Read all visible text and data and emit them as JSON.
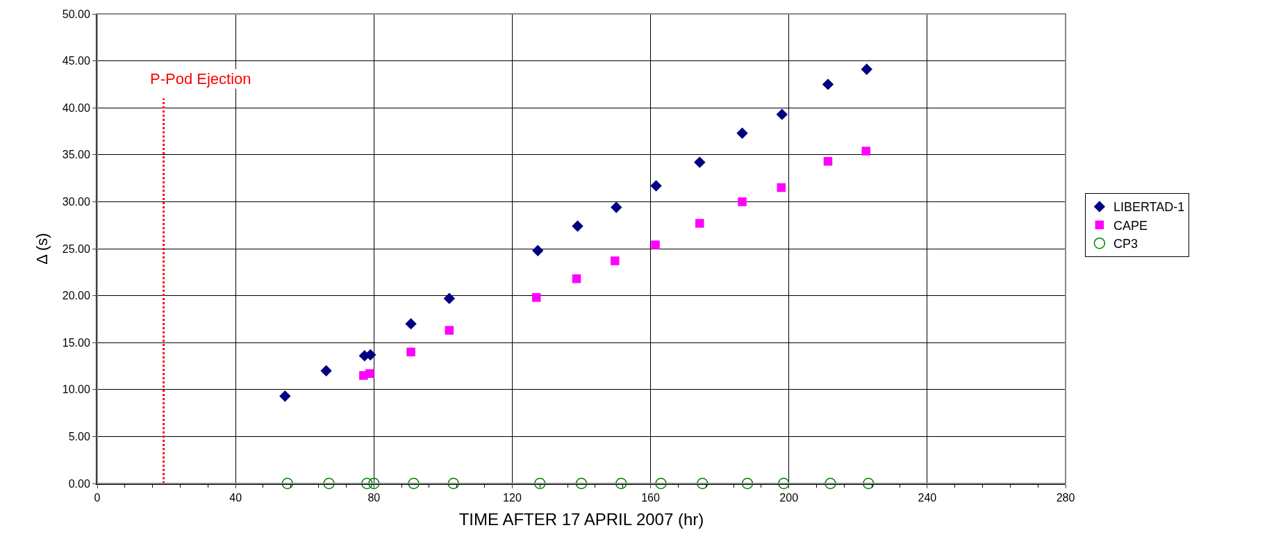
{
  "chart_data": {
    "type": "scatter",
    "xlabel": "TIME AFTER 17 APRIL 2007 (hr)",
    "ylabel": "Δ (s)",
    "xlim": [
      0,
      280
    ],
    "xticks": [
      0,
      40,
      80,
      120,
      160,
      200,
      240,
      280
    ],
    "ylim": [
      0,
      50
    ],
    "yticks": [
      {
        "value": 0,
        "label": "0.00"
      },
      {
        "value": 5,
        "label": "5.00"
      },
      {
        "value": 10,
        "label": "10.00"
      },
      {
        "value": 15,
        "label": "15.00"
      },
      {
        "value": 20,
        "label": "20.00"
      },
      {
        "value": 25,
        "label": "25.00"
      },
      {
        "value": 30,
        "label": "30.00"
      },
      {
        "value": 35,
        "label": "35.00"
      },
      {
        "value": 40,
        "label": "40.00"
      },
      {
        "value": 45,
        "label": "45.00"
      },
      {
        "value": 50,
        "label": "50.00"
      }
    ],
    "grid": true,
    "legend": "right",
    "series": [
      {
        "name": "LIBERTAD-1",
        "color": "#000080",
        "marker": "diamond",
        "x": [
          54.3,
          66.2,
          77.3,
          79.0,
          90.7,
          101.8,
          127.4,
          138.9,
          150.1,
          161.6,
          174.2,
          186.5,
          198.0,
          211.3,
          222.5
        ],
        "values": [
          9.3,
          12.0,
          13.6,
          13.7,
          17.0,
          19.7,
          24.8,
          27.4,
          29.4,
          31.7,
          34.2,
          37.3,
          39.3,
          42.5,
          44.1
        ]
      },
      {
        "name": "CAPE",
        "color": "#ff00ff",
        "marker": "square",
        "x": [
          77.0,
          78.8,
          90.7,
          101.8,
          127.0,
          138.6,
          149.7,
          161.4,
          174.2,
          186.5,
          197.8,
          211.3,
          222.3
        ],
        "values": [
          11.5,
          11.7,
          14.0,
          16.3,
          19.8,
          21.8,
          23.7,
          25.4,
          27.7,
          30.0,
          31.5,
          34.3,
          35.4
        ]
      },
      {
        "name": "CP3",
        "color": "#008000",
        "marker": "circle-open",
        "x": [
          55,
          67,
          78,
          80,
          91.5,
          103,
          128,
          140,
          151.5,
          163,
          175,
          188,
          198.5,
          212,
          223
        ],
        "values": [
          0,
          0,
          0,
          0,
          0,
          0,
          0,
          0,
          0,
          0,
          0,
          0,
          0,
          0,
          0
        ]
      }
    ],
    "ref_lines": [
      {
        "axis": "x",
        "value": 19.2,
        "label": "P-Pod Ejection",
        "color": "#ff0000",
        "line_style": "dotted"
      }
    ]
  }
}
